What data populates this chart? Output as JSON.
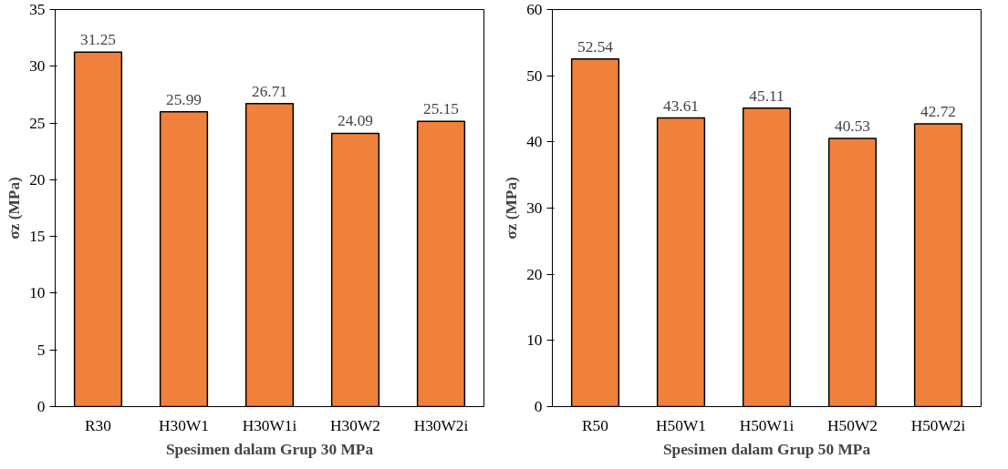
{
  "chart_data": [
    {
      "type": "bar",
      "categories": [
        "R30",
        "H30W1",
        "H30W1i",
        "H30W2",
        "H30W2i"
      ],
      "values": [
        31.25,
        25.99,
        26.71,
        24.09,
        25.15
      ],
      "color": "#f0813a",
      "xlabel": "Spesimen dalam Grup 30 MPa",
      "ylabel": "σz (MPa)",
      "ylim": [
        0,
        35
      ],
      "yticks": [
        0,
        5,
        10,
        15,
        20,
        25,
        30,
        35
      ],
      "grid": false,
      "data_labels": true
    },
    {
      "type": "bar",
      "categories": [
        "R50",
        "H50W1",
        "H50W1i",
        "H50W2",
        "H50W2i"
      ],
      "values": [
        52.54,
        43.61,
        45.11,
        40.53,
        42.72
      ],
      "color": "#f0813a",
      "xlabel": "Spesimen dalam Grup 50 MPa",
      "ylabel": "σz (MPa)",
      "ylim": [
        0,
        60
      ],
      "yticks": [
        0,
        10,
        20,
        30,
        40,
        50,
        60
      ],
      "grid": false,
      "data_labels": true
    }
  ]
}
